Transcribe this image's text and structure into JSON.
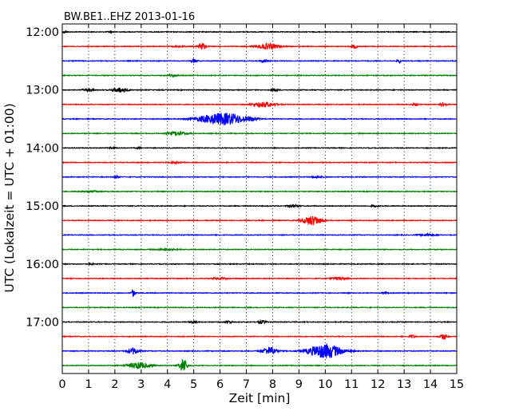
{
  "chart_data": {
    "type": "line",
    "title": "BW.BE1..EHZ 2013-01-16",
    "xlabel": "Zeit  [min]",
    "ylabel": "UTC (Lokalzeit = UTC + 01:00)",
    "xlim": [
      0,
      15
    ],
    "x_ticks": [
      "0",
      "1",
      "2",
      "3",
      "4",
      "5",
      "6",
      "7",
      "8",
      "9",
      "10",
      "11",
      "12",
      "13",
      "14",
      "15"
    ],
    "y_ticks": [
      "12:00",
      "13:00",
      "14:00",
      "15:00",
      "16:00",
      "17:00"
    ],
    "grid": {
      "vertical_dotted": true
    },
    "trace_colors": [
      "#000000",
      "#ff0000",
      "#0000ff",
      "#008000"
    ],
    "traces": [
      {
        "start": "12:00",
        "events": [
          [
            0.1,
            0.15,
            1
          ],
          [
            1.8,
            0.1,
            1
          ]
        ]
      },
      {
        "start": "12:15",
        "events": [
          [
            4.5,
            0.4,
            1
          ],
          [
            5.3,
            0.2,
            5
          ],
          [
            7.8,
            0.6,
            3.5
          ],
          [
            11.1,
            0.15,
            2.5
          ]
        ]
      },
      {
        "start": "12:30",
        "events": [
          [
            5.0,
            0.15,
            2.5
          ],
          [
            7.7,
            0.2,
            1.5
          ],
          [
            12.8,
            0.1,
            2.5
          ]
        ]
      },
      {
        "start": "12:45",
        "events": [
          [
            4.2,
            0.3,
            1
          ]
        ]
      },
      {
        "start": "13:00",
        "events": [
          [
            1.0,
            0.3,
            1.5
          ],
          [
            2.2,
            0.4,
            3
          ],
          [
            8.1,
            0.15,
            2
          ]
        ]
      },
      {
        "start": "13:15",
        "events": [
          [
            7.7,
            0.6,
            3
          ],
          [
            13.4,
            0.15,
            1.5
          ],
          [
            14.5,
            0.2,
            2
          ]
        ]
      },
      {
        "start": "13:30",
        "events": [
          [
            5.5,
            0.8,
            3
          ],
          [
            6.3,
            1.0,
            7
          ],
          [
            7.2,
            0.3,
            1.5
          ]
        ]
      },
      {
        "start": "13:45",
        "events": [
          [
            4.4,
            0.5,
            2.5
          ]
        ]
      },
      {
        "start": "14:00",
        "events": [
          [
            1.9,
            0.2,
            1
          ],
          [
            2.9,
            0.1,
            1
          ]
        ]
      },
      {
        "start": "14:15",
        "events": [
          [
            4.3,
            0.3,
            0.8
          ]
        ]
      },
      {
        "start": "14:30",
        "events": [
          [
            2.1,
            0.15,
            1.5
          ],
          [
            9.7,
            0.3,
            1
          ]
        ]
      },
      {
        "start": "14:45",
        "events": [
          [
            1.1,
            0.5,
            1
          ]
        ]
      },
      {
        "start": "15:00",
        "events": [
          [
            8.8,
            0.3,
            1.5
          ],
          [
            11.9,
            0.2,
            1
          ]
        ]
      },
      {
        "start": "15:15",
        "events": [
          [
            9.5,
            0.5,
            6
          ]
        ]
      },
      {
        "start": "15:30",
        "events": [
          [
            13.9,
            0.4,
            1.5
          ]
        ]
      },
      {
        "start": "15:45",
        "events": [
          [
            4.0,
            0.5,
            1
          ]
        ]
      },
      {
        "start": "16:00",
        "events": [
          [
            1.1,
            0.1,
            1
          ]
        ]
      },
      {
        "start": "16:15",
        "events": [
          [
            6.0,
            0.4,
            1
          ],
          [
            10.5,
            0.4,
            1.5
          ]
        ]
      },
      {
        "start": "16:30",
        "events": [
          [
            2.7,
            0.1,
            4.5
          ],
          [
            12.3,
            0.15,
            1
          ]
        ]
      },
      {
        "start": "16:45",
        "events": []
      },
      {
        "start": "17:00",
        "events": [
          [
            5.0,
            0.2,
            1.5
          ],
          [
            6.3,
            0.2,
            1.5
          ],
          [
            7.6,
            0.2,
            2
          ]
        ]
      },
      {
        "start": "17:15",
        "events": [
          [
            13.3,
            0.15,
            2
          ],
          [
            14.5,
            0.2,
            3.5
          ]
        ]
      },
      {
        "start": "17:30",
        "events": [
          [
            2.7,
            0.3,
            4
          ],
          [
            7.9,
            0.4,
            5
          ],
          [
            10.0,
            0.9,
            9
          ]
        ]
      },
      {
        "start": "17:45",
        "events": [
          [
            2.9,
            0.6,
            4
          ],
          [
            4.6,
            0.2,
            9
          ]
        ]
      }
    ]
  }
}
